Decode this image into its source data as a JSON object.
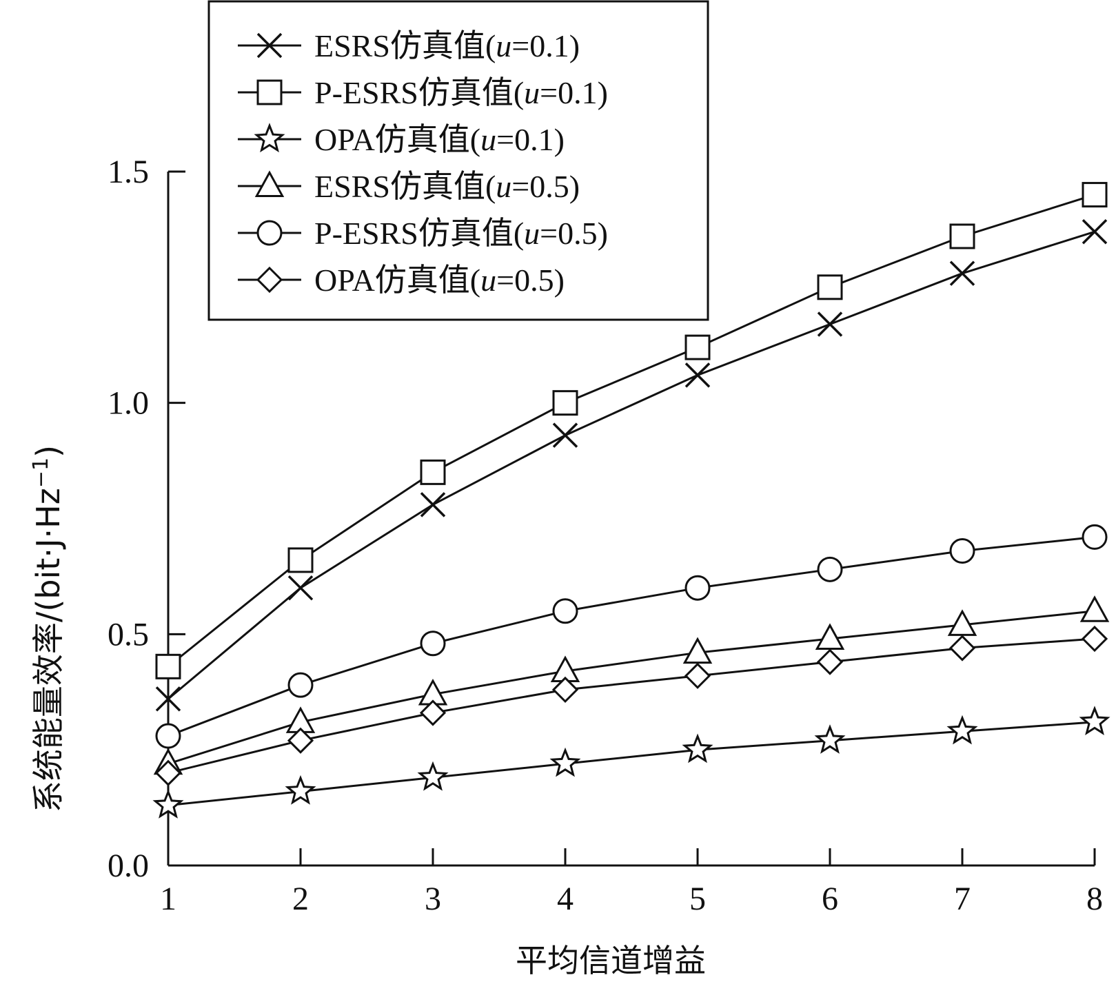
{
  "chart_data": {
    "type": "line",
    "xlabel": "平均信道增益",
    "ylabel": "系统能量效率/(bit·J·Hz",
    "ylabel_sup": "−1",
    "ylabel_close": ")",
    "xlim": [
      1,
      8
    ],
    "ylim": [
      0.0,
      1.5
    ],
    "x": [
      1,
      2,
      3,
      4,
      5,
      6,
      7,
      8
    ],
    "x_tick_labels": [
      "1",
      "2",
      "3",
      "4",
      "5",
      "6",
      "7",
      "8"
    ],
    "y_ticks": [
      0.0,
      0.5,
      1.0,
      1.5
    ],
    "y_tick_labels": [
      "0.0",
      "0.5",
      "1.0",
      "1.5"
    ],
    "grid": false,
    "legend_position": "top-left",
    "series": [
      {
        "name": "ESRS仿真值(u=0.1)",
        "legend_prefix": "ESRS仿真值(",
        "legend_suffix": "=0.1)",
        "marker": "x-cross",
        "values": [
          0.36,
          0.6,
          0.78,
          0.93,
          1.06,
          1.17,
          1.28,
          1.37
        ]
      },
      {
        "name": "P-ESRS仿真值(u=0.1)",
        "legend_prefix": "P-ESRS仿真值(",
        "legend_suffix": "=0.1)",
        "marker": "square",
        "values": [
          0.43,
          0.66,
          0.85,
          1.0,
          1.12,
          1.25,
          1.36,
          1.45
        ]
      },
      {
        "name": "OPA仿真值(u=0.1)",
        "legend_prefix": "OPA仿真值(",
        "legend_suffix": "=0.1)",
        "marker": "star",
        "values": [
          0.13,
          0.16,
          0.19,
          0.22,
          0.25,
          0.27,
          0.29,
          0.31
        ]
      },
      {
        "name": "ESRS仿真值(u=0.5)",
        "legend_prefix": "ESRS仿真值(",
        "legend_suffix": "=0.5)",
        "marker": "triangle",
        "values": [
          0.22,
          0.31,
          0.37,
          0.42,
          0.46,
          0.49,
          0.52,
          0.55
        ]
      },
      {
        "name": "P-ESRS仿真值(u=0.5)",
        "legend_prefix": "P-ESRS仿真值(",
        "legend_suffix": "=0.5)",
        "marker": "circle",
        "values": [
          0.28,
          0.39,
          0.48,
          0.55,
          0.6,
          0.64,
          0.68,
          0.71
        ]
      },
      {
        "name": "OPA仿真值(u=0.5)",
        "legend_prefix": "OPA仿真值(",
        "legend_suffix": "=0.5)",
        "marker": "diamond",
        "values": [
          0.2,
          0.27,
          0.33,
          0.38,
          0.41,
          0.44,
          0.47,
          0.49
        ]
      }
    ],
    "legend_variable": "u",
    "colors": {
      "line": "#111111",
      "background": "#ffffff"
    }
  }
}
